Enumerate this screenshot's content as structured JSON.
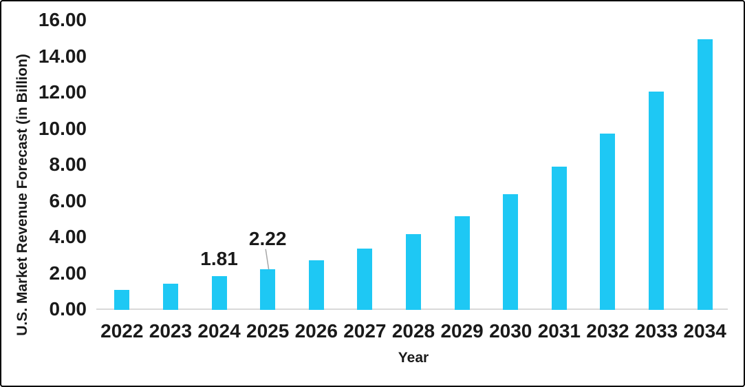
{
  "chart_data": {
    "type": "bar",
    "title": "",
    "xlabel": "Year",
    "ylabel": "U.S. Market Revenue Forecast (in Billion)",
    "categories": [
      "2022",
      "2023",
      "2024",
      "2025",
      "2026",
      "2027",
      "2028",
      "2029",
      "2030",
      "2031",
      "2032",
      "2033",
      "2034"
    ],
    "values": [
      1.05,
      1.4,
      1.81,
      2.22,
      2.72,
      3.36,
      4.15,
      5.15,
      6.37,
      7.87,
      9.72,
      12.04,
      14.94
    ],
    "ylim": [
      0,
      16
    ],
    "y_tick_step": 2,
    "y_ticks": [
      "0.00",
      "2.00",
      "4.00",
      "6.00",
      "8.00",
      "10.00",
      "12.00",
      "14.00",
      "16.00"
    ],
    "grid": false,
    "legend": false,
    "data_labels": [
      {
        "category": "2024",
        "text": "1.81",
        "leader_line": false
      },
      {
        "category": "2025",
        "text": "2.22",
        "leader_line": true
      }
    ]
  },
  "colors": {
    "bar": "#1ec8f4",
    "axis_line": "#d9d9d9",
    "leader_line": "#a6a6a6",
    "text": "#1a1a1a",
    "background": "#ffffff",
    "border": "#000000"
  }
}
